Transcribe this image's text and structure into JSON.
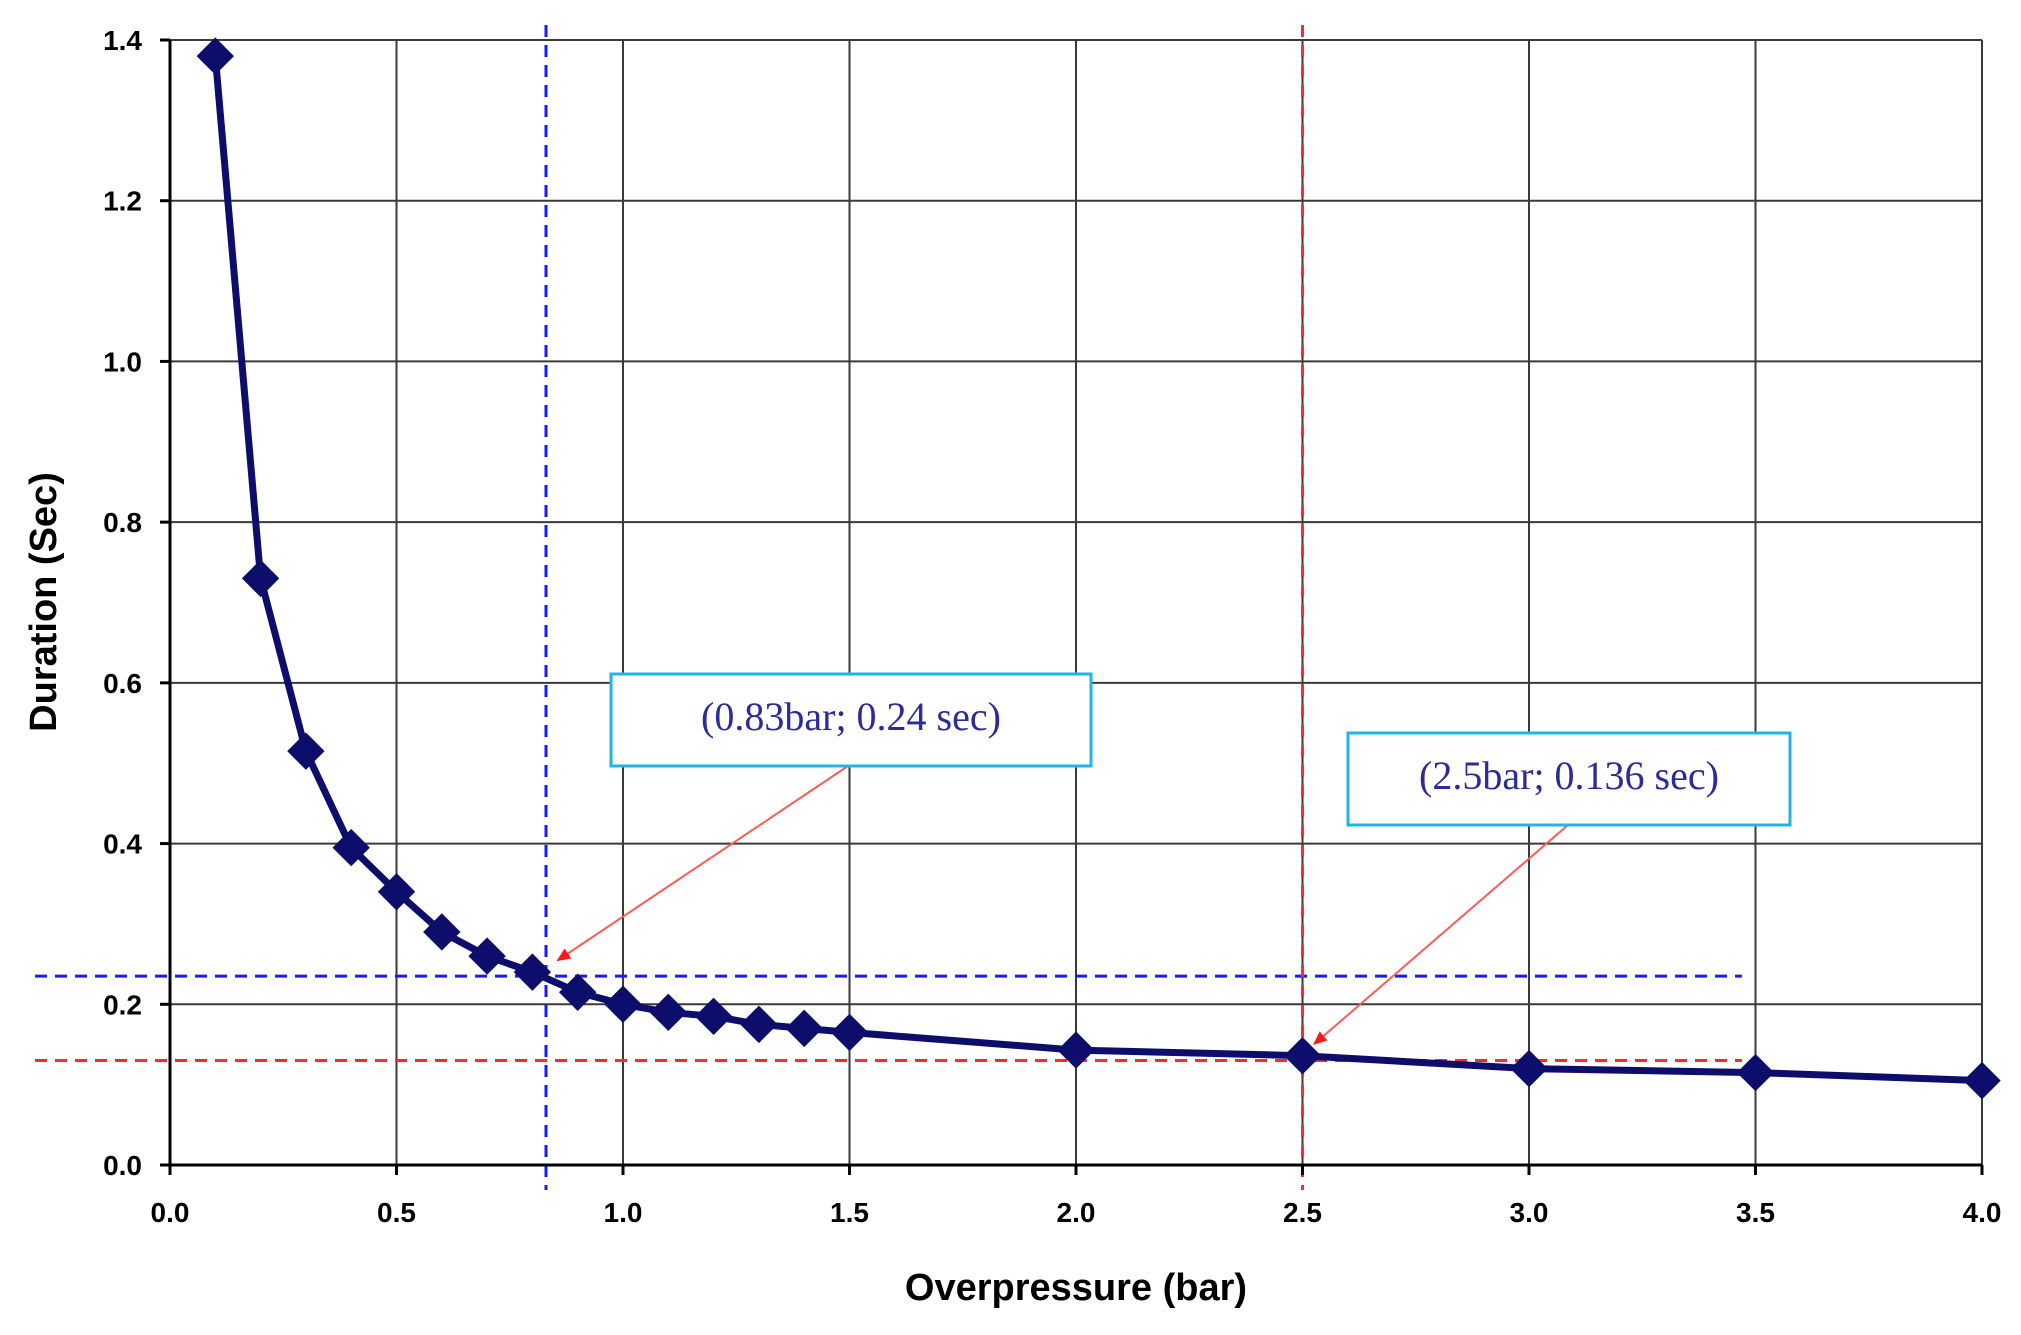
{
  "chart_data": {
    "type": "line",
    "title": "",
    "xlabel": "Overpressure (bar)",
    "ylabel": "Duration (Sec)",
    "xlim": [
      0,
      4
    ],
    "ylim": [
      0,
      1.4
    ],
    "x_ticks": [
      "0.0",
      "0.5",
      "1.0",
      "1.5",
      "2.0",
      "2.5",
      "3.0",
      "3.5",
      "4.0"
    ],
    "y_ticks": [
      "0.0",
      "0.2",
      "0.4",
      "0.6",
      "0.8",
      "1.0",
      "1.2",
      "1.4"
    ],
    "grid": true,
    "legend": "none",
    "series": [
      {
        "color": "#0d0d6b",
        "marker": "diamond",
        "points": [
          {
            "x": 0.1,
            "y": 1.38
          },
          {
            "x": 0.2,
            "y": 0.73
          },
          {
            "x": 0.3,
            "y": 0.515
          },
          {
            "x": 0.4,
            "y": 0.395
          },
          {
            "x": 0.5,
            "y": 0.34
          },
          {
            "x": 0.6,
            "y": 0.29
          },
          {
            "x": 0.7,
            "y": 0.26
          },
          {
            "x": 0.8,
            "y": 0.24
          },
          {
            "x": 0.9,
            "y": 0.215
          },
          {
            "x": 1.0,
            "y": 0.2
          },
          {
            "x": 1.1,
            "y": 0.19
          },
          {
            "x": 1.2,
            "y": 0.185
          },
          {
            "x": 1.3,
            "y": 0.175
          },
          {
            "x": 1.4,
            "y": 0.17
          },
          {
            "x": 1.5,
            "y": 0.165
          },
          {
            "x": 2.0,
            "y": 0.143
          },
          {
            "x": 2.5,
            "y": 0.136
          },
          {
            "x": 3.0,
            "y": 0.12
          },
          {
            "x": 3.5,
            "y": 0.115
          },
          {
            "x": 4.0,
            "y": 0.105
          }
        ]
      }
    ],
    "reference_lines": [
      {
        "orientation": "vertical",
        "value": 0.83,
        "color": "#1a1aff",
        "style": "dashed"
      },
      {
        "orientation": "horizontal",
        "value": 0.235,
        "color": "#1a1aff",
        "style": "dashed"
      },
      {
        "orientation": "vertical",
        "value": 2.5,
        "color": "#ff2a2a",
        "style": "dashed"
      },
      {
        "orientation": "horizontal",
        "value": 0.13,
        "color": "#ff2a2a",
        "style": "dashed"
      }
    ],
    "annotations": [
      {
        "text": "(0.83bar; 0.24 sec)",
        "text_color": "#2b2b9a",
        "border_color": "#1fb6e6",
        "arrow_color": "#ff5a5a",
        "target": {
          "x": 0.83,
          "y": 0.24
        }
      },
      {
        "text": "(2.5bar; 0.136 sec)",
        "text_color": "#2b2b9a",
        "border_color": "#1fb6e6",
        "arrow_color": "#ff5a5a",
        "target": {
          "x": 2.5,
          "y": 0.136
        }
      }
    ]
  }
}
